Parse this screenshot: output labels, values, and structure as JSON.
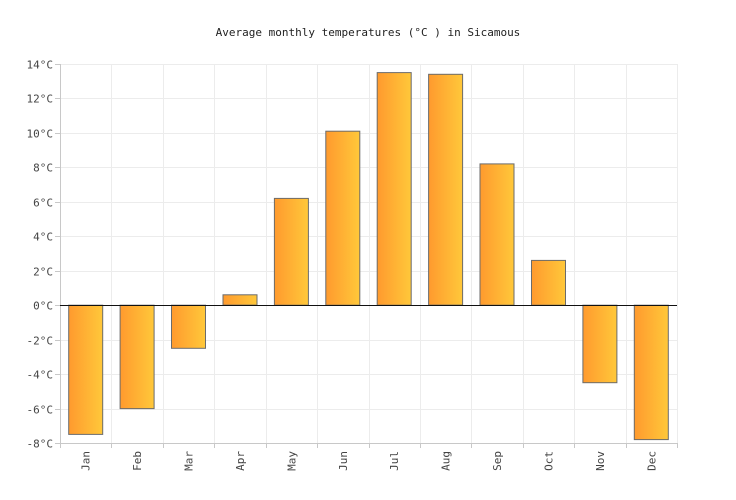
{
  "chart_data": {
    "type": "bar",
    "title": "Average monthly temperatures (°C ) in Sicamous",
    "xlabel": "",
    "ylabel": "",
    "categories": [
      "Jan",
      "Feb",
      "Mar",
      "Apr",
      "May",
      "Jun",
      "Jul",
      "Aug",
      "Sep",
      "Oct",
      "Nov",
      "Dec"
    ],
    "values": [
      -7.5,
      -6.0,
      -2.5,
      0.6,
      6.2,
      10.1,
      13.5,
      13.4,
      8.2,
      2.6,
      -4.5,
      -7.8
    ],
    "ylim": [
      -8,
      14
    ],
    "yticks": [
      -8,
      -6,
      -4,
      -2,
      0,
      2,
      4,
      6,
      8,
      10,
      12,
      14
    ],
    "ytick_labels": [
      "-8°C",
      "-6°C",
      "-4°C",
      "-2°C",
      "0°C",
      "2°C",
      "4°C",
      "6°C",
      "8°C",
      "10°C",
      "12°C",
      "14°C"
    ],
    "grid": true,
    "legend": "none",
    "colors": {
      "bar_gradient_start": "#ff9a2e",
      "bar_gradient_end": "#ffc83a",
      "bar_border": "#6b6b6b",
      "zero_line": "#111111"
    }
  }
}
